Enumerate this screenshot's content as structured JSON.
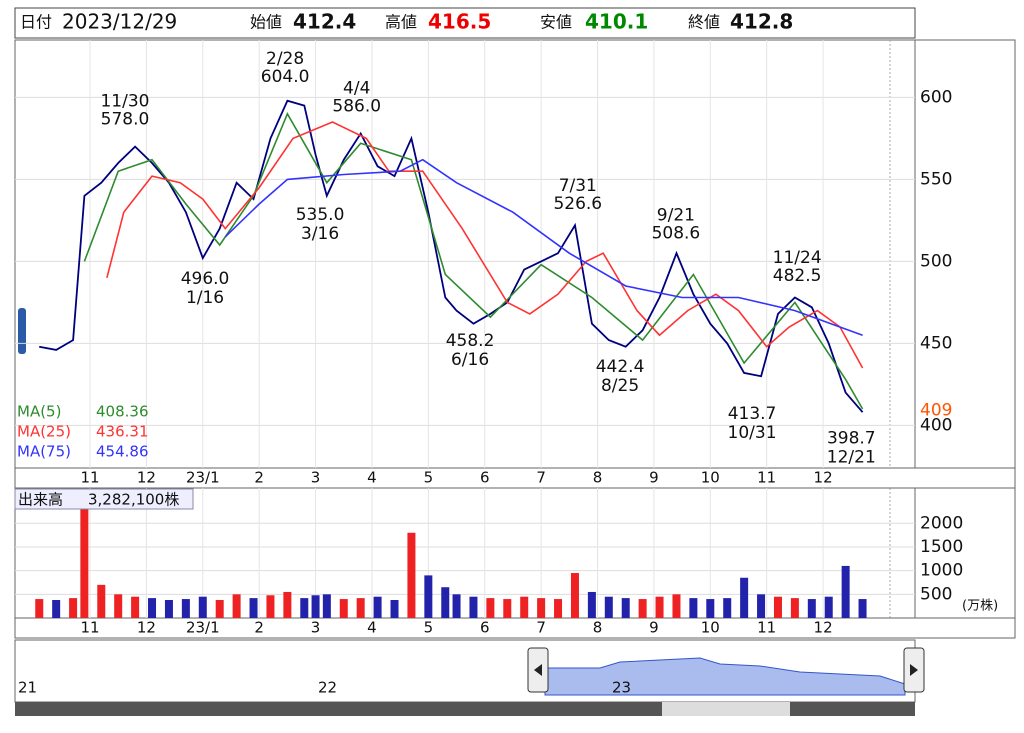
{
  "header": {
    "date_label": "日付",
    "date": "2023/12/29",
    "open_label": "始値",
    "open": 412.4,
    "high_label": "高値",
    "high": 416.5,
    "low_label": "安値",
    "low": 410.1,
    "close_label": "終値",
    "close": 412.8
  },
  "chart_data": [
    {
      "type": "line",
      "xlim": [
        -0.33,
        15.63
      ],
      "ylim": [
        374,
        635
      ],
      "yticks": [
        400,
        450,
        500,
        550,
        600
      ],
      "grid": true,
      "xticks": [
        {
          "value": 1,
          "label": "11"
        },
        {
          "value": 2,
          "label": "12"
        },
        {
          "value": 3,
          "label": "23/1"
        },
        {
          "value": 4,
          "label": "2"
        },
        {
          "value": 5,
          "label": "3"
        },
        {
          "value": 6,
          "label": "4"
        },
        {
          "value": 7,
          "label": "5"
        },
        {
          "value": 8,
          "label": "6"
        },
        {
          "value": 9,
          "label": "7"
        },
        {
          "value": 10,
          "label": "8"
        },
        {
          "value": 11,
          "label": "9"
        },
        {
          "value": 12,
          "label": "10"
        },
        {
          "value": 13,
          "label": "11"
        },
        {
          "value": 14,
          "label": "12"
        }
      ],
      "series": [
        {
          "color": "#00007f",
          "x": [
            0.1,
            0.4,
            0.7,
            0.9,
            1.2,
            1.5,
            1.8,
            2.1,
            2.4,
            2.7,
            3.0,
            3.3,
            3.6,
            3.9,
            4.2,
            4.5,
            4.8,
            5.0,
            5.2,
            5.5,
            5.8,
            6.1,
            6.4,
            6.7,
            7.0,
            7.3,
            7.5,
            7.8,
            8.1,
            8.4,
            8.7,
            9.0,
            9.3,
            9.6,
            9.9,
            10.2,
            10.5,
            10.8,
            11.1,
            11.4,
            11.7,
            12.0,
            12.3,
            12.6,
            12.9,
            13.2,
            13.5,
            13.8,
            14.1,
            14.4,
            14.7
          ],
          "values": [
            448,
            446,
            452,
            540,
            548,
            560,
            570,
            560,
            548,
            530,
            502,
            520,
            548,
            538,
            575,
            598,
            595,
            565,
            540,
            562,
            578,
            558,
            552,
            575,
            530,
            478,
            470,
            462,
            468,
            475,
            495,
            500,
            505,
            522,
            462,
            452,
            448,
            458,
            478,
            505,
            480,
            462,
            450,
            432,
            430,
            468,
            478,
            472,
            450,
            420,
            408
          ]
        },
        {
          "name": "MA(5)",
          "last": 408.36,
          "color": "#2e8b2e",
          "x": [
            0.9,
            1.5,
            2.1,
            2.7,
            3.3,
            3.9,
            4.5,
            5.2,
            5.8,
            6.7,
            7.3,
            8.1,
            9.0,
            9.9,
            10.8,
            11.7,
            12.6,
            13.5,
            14.4,
            14.7
          ],
          "values": [
            500,
            555,
            562,
            535,
            510,
            540,
            590,
            548,
            572,
            562,
            492,
            466,
            498,
            478,
            452,
            492,
            438,
            475,
            428,
            410
          ]
        },
        {
          "name": "MA(25)",
          "last": 436.31,
          "color": "#ff3333",
          "x": [
            1.3,
            1.6,
            2.1,
            2.6,
            3.0,
            3.4,
            4.0,
            4.6,
            5.3,
            5.9,
            6.3,
            6.9,
            7.6,
            8.4,
            8.8,
            9.3,
            9.8,
            10.1,
            10.7,
            11.1,
            11.6,
            12.1,
            12.5,
            13.0,
            13.4,
            13.9,
            14.3,
            14.7
          ],
          "values": [
            490,
            530,
            552,
            548,
            538,
            520,
            545,
            575,
            585,
            575,
            555,
            555,
            520,
            475,
            468,
            480,
            500,
            505,
            470,
            455,
            470,
            480,
            470,
            448,
            460,
            470,
            460,
            435
          ]
        },
        {
          "name": "MA(75)",
          "last": 454.86,
          "color": "#3333ff",
          "x": [
            3.4,
            4.0,
            4.5,
            5.5,
            6.5,
            6.9,
            7.5,
            8.5,
            9.5,
            10.5,
            11.5,
            12.5,
            13.5,
            14.7
          ],
          "values": [
            515,
            535,
            550,
            553,
            555,
            562,
            548,
            530,
            505,
            485,
            478,
            478,
            470,
            455
          ]
        }
      ],
      "current": {
        "value": 409,
        "color": "#ff5500"
      },
      "annotations": [
        {
          "kind": "high",
          "date": "11/30",
          "x": 1.62,
          "value": 578,
          "value_label": "578.0"
        },
        {
          "kind": "low",
          "date": "1/16",
          "x": 3.04,
          "value": 496,
          "value_label": "496.0"
        },
        {
          "kind": "high",
          "date": "2/28",
          "x": 4.46,
          "value": 604,
          "value_label": "604.0"
        },
        {
          "kind": "low",
          "date": "3/16",
          "x": 5.08,
          "value": 535,
          "value_label": "535.0"
        },
        {
          "kind": "high",
          "date": "4/4",
          "x": 5.73,
          "value": 586,
          "value_label": "586.0"
        },
        {
          "kind": "low",
          "date": "6/16",
          "x": 7.74,
          "value": 458.2
        },
        {
          "kind": "high",
          "date": "7/31",
          "x": 9.65,
          "value": 526.6
        },
        {
          "kind": "low",
          "date": "8/25",
          "x": 10.4,
          "value": 442.4
        },
        {
          "kind": "high",
          "date": "9/21",
          "x": 11.39,
          "value": 508.6
        },
        {
          "kind": "low",
          "date": "10/31",
          "x": 12.74,
          "value": 413.7
        },
        {
          "kind": "high",
          "date": "11/24",
          "x": 13.54,
          "value": 482.5
        },
        {
          "kind": "low",
          "date": "12/21",
          "x": 14.5,
          "value": 398.7
        }
      ]
    },
    {
      "type": "bar",
      "label": "出来高",
      "total": "3,282,100株",
      "unit": "(万株)",
      "xlim": [
        -0.33,
        15.63
      ],
      "ylim": [
        0,
        2640
      ],
      "yticks": [
        500,
        1000,
        1500,
        2000
      ],
      "up_color": "#ee2222",
      "down_color": "#2222aa",
      "xticks": [
        {
          "value": 1,
          "label": "11"
        },
        {
          "value": 2,
          "label": "12"
        },
        {
          "value": 3,
          "label": "23/1"
        },
        {
          "value": 4,
          "label": "2"
        },
        {
          "value": 5,
          "label": "3"
        },
        {
          "value": 6,
          "label": "4"
        },
        {
          "value": 7,
          "label": "5"
        },
        {
          "value": 8,
          "label": "6"
        },
        {
          "value": 9,
          "label": "7"
        },
        {
          "value": 10,
          "label": "8"
        },
        {
          "value": 11,
          "label": "9"
        },
        {
          "value": 12,
          "label": "10"
        },
        {
          "value": 13,
          "label": "11"
        },
        {
          "value": 14,
          "label": "12"
        }
      ],
      "x": [
        0.1,
        0.4,
        0.7,
        0.9,
        1.2,
        1.5,
        1.8,
        2.1,
        2.4,
        2.7,
        3.0,
        3.3,
        3.6,
        3.9,
        4.2,
        4.5,
        4.8,
        5.0,
        5.2,
        5.5,
        5.8,
        6.1,
        6.4,
        6.7,
        7.0,
        7.3,
        7.5,
        7.8,
        8.1,
        8.4,
        8.7,
        9.0,
        9.3,
        9.6,
        9.9,
        10.2,
        10.5,
        10.8,
        11.1,
        11.4,
        11.7,
        12.0,
        12.3,
        12.6,
        12.9,
        13.2,
        13.5,
        13.8,
        14.1,
        14.4,
        14.7
      ],
      "values": [
        400,
        380,
        420,
        2300,
        700,
        500,
        450,
        420,
        380,
        400,
        450,
        380,
        500,
        420,
        480,
        550,
        420,
        480,
        500,
        400,
        420,
        450,
        380,
        1800,
        900,
        650,
        500,
        450,
        420,
        400,
        450,
        420,
        400,
        950,
        550,
        450,
        420,
        400,
        450,
        500,
        420,
        400,
        420,
        850,
        500,
        450,
        420,
        400,
        450,
        1100,
        400
      ]
    }
  ],
  "navigator": {
    "labels": [
      "21",
      "22",
      "23"
    ]
  }
}
